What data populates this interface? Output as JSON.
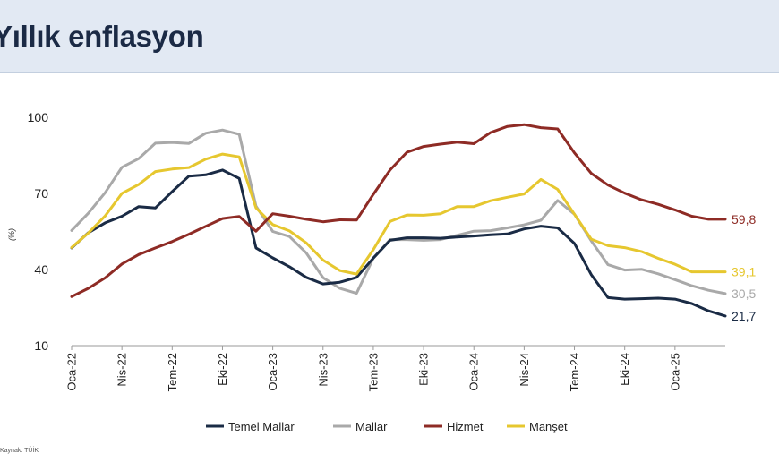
{
  "header": {
    "title": "Yıllık enflasyon"
  },
  "source": "Kaynak: TÜİK",
  "chart_data": {
    "type": "line",
    "title": "Yıllık enflasyon",
    "ylabel": "(%)",
    "ylim": [
      10,
      100
    ],
    "yticks": [
      10,
      40,
      70,
      100
    ],
    "xtick_labels": [
      "Oca-22",
      "Nis-22",
      "Tem-22",
      "Eki-22",
      "Oca-23",
      "Nis-23",
      "Tem-23",
      "Eki-23",
      "Oca-24",
      "Nis-24",
      "Tem-24",
      "Eki-24",
      "Oca-25"
    ],
    "legend_position": "bottom",
    "grid": false,
    "series": [
      {
        "name": "Temel Mallar",
        "color": "#1a2b45",
        "end_label": "21,7",
        "values": [
          48.5,
          54.5,
          58.4,
          61.0,
          64.8,
          64.3,
          70.7,
          76.8,
          77.3,
          79.2,
          75.9,
          48.5,
          44.6,
          41.1,
          36.9,
          34.3,
          35.0,
          36.9,
          44.5,
          51.5,
          52.5,
          52.5,
          52.3,
          52.8,
          53.2,
          53.7,
          54.0,
          56.0,
          57.1,
          56.4,
          50.3,
          38.0,
          28.9,
          28.3,
          28.5,
          28.7,
          28.3,
          26.6,
          23.7,
          21.7
        ]
      },
      {
        "name": "Mallar",
        "color": "#a9a9a9",
        "end_label": "30,5",
        "values": [
          55.4,
          62.2,
          70.3,
          80.3,
          83.7,
          89.8,
          90.1,
          89.7,
          93.7,
          95.0,
          93.3,
          65.0,
          55.0,
          53.0,
          46.5,
          36.8,
          32.6,
          30.6,
          44.5,
          51.8,
          51.8,
          51.5,
          51.8,
          53.5,
          55.1,
          55.3,
          56.4,
          57.6,
          59.4,
          67.2,
          61.8,
          51.3,
          41.9,
          39.8,
          40.1,
          38.3,
          36.0,
          33.6,
          31.8,
          30.5
        ]
      },
      {
        "name": "Hizmet",
        "color": "#8e2b25",
        "end_label": "59,8",
        "values": [
          29.3,
          32.6,
          36.7,
          42.2,
          45.9,
          48.5,
          51.0,
          53.9,
          57.0,
          60.1,
          60.9,
          55.1,
          62.0,
          61.0,
          59.8,
          58.8,
          59.6,
          59.5,
          69.6,
          79.2,
          86.2,
          88.5,
          89.4,
          90.2,
          89.6,
          94.0,
          96.4,
          97.1,
          95.9,
          95.4,
          86.0,
          77.9,
          73.3,
          70.1,
          67.5,
          65.7,
          63.5,
          61.0,
          59.8,
          59.8
        ]
      },
      {
        "name": "Manşet",
        "color": "#e6c72f",
        "end_label": "39,1",
        "values": [
          48.7,
          54.4,
          61.1,
          70.0,
          73.5,
          78.6,
          79.6,
          80.2,
          83.5,
          85.5,
          84.4,
          64.3,
          57.7,
          55.2,
          50.5,
          43.7,
          39.6,
          38.2,
          47.8,
          58.9,
          61.5,
          61.4,
          62.0,
          64.8,
          64.8,
          67.1,
          68.5,
          69.8,
          75.5,
          71.6,
          61.8,
          51.97,
          49.4,
          48.6,
          47.1,
          44.4,
          42.1,
          39.1,
          39.1,
          39.1
        ]
      }
    ]
  }
}
